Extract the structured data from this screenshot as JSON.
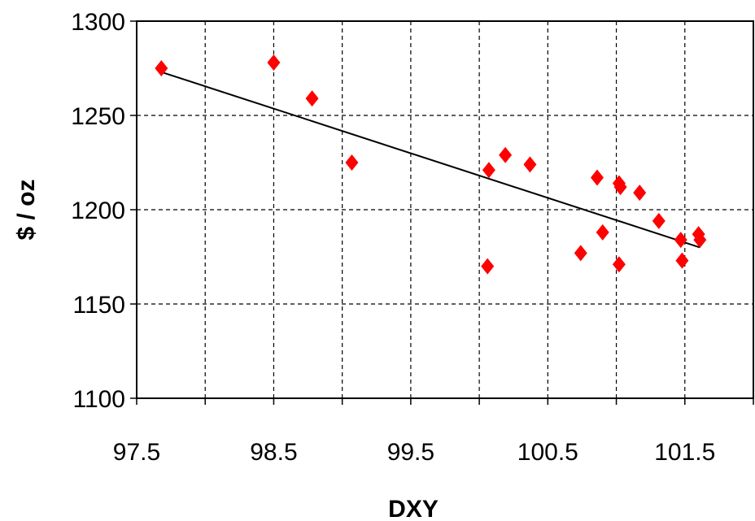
{
  "chart_data": {
    "type": "scatter",
    "title": "",
    "xlabel": "DXY",
    "ylabel": "$ / oz",
    "xlim": [
      97.5,
      102.0
    ],
    "ylim": [
      1100,
      1300
    ],
    "x_ticks": [
      97.5,
      98.0,
      98.5,
      99.0,
      99.5,
      100.0,
      100.5,
      101.0,
      101.5,
      102.0
    ],
    "x_tick_labels": [
      "97.5",
      "",
      "98.5",
      "",
      "99.5",
      "",
      "100.5",
      "",
      "101.5",
      ""
    ],
    "y_ticks": [
      1100,
      1150,
      1200,
      1250,
      1300
    ],
    "y_tick_labels": [
      "1100",
      "1150",
      "1200",
      "1250",
      "1300"
    ],
    "grid": true,
    "marker": "diamond",
    "marker_color": "#ff0000",
    "trendline_color": "#000000",
    "series": [
      {
        "points": [
          {
            "x": 97.68,
            "y": 1275
          },
          {
            "x": 98.5,
            "y": 1278
          },
          {
            "x": 98.78,
            "y": 1259
          },
          {
            "x": 99.07,
            "y": 1225
          },
          {
            "x": 100.07,
            "y": 1221
          },
          {
            "x": 100.19,
            "y": 1229
          },
          {
            "x": 100.37,
            "y": 1224
          },
          {
            "x": 100.06,
            "y": 1170
          },
          {
            "x": 100.74,
            "y": 1177
          },
          {
            "x": 100.86,
            "y": 1217
          },
          {
            "x": 100.9,
            "y": 1188
          },
          {
            "x": 101.02,
            "y": 1214
          },
          {
            "x": 101.03,
            "y": 1212
          },
          {
            "x": 101.02,
            "y": 1171
          },
          {
            "x": 101.17,
            "y": 1209
          },
          {
            "x": 101.31,
            "y": 1194
          },
          {
            "x": 101.47,
            "y": 1184
          },
          {
            "x": 101.48,
            "y": 1173
          },
          {
            "x": 101.6,
            "y": 1187
          },
          {
            "x": 101.61,
            "y": 1184
          }
        ]
      }
    ],
    "trendline": {
      "x": [
        97.68,
        101.61
      ],
      "y": [
        1273,
        1180
      ]
    }
  }
}
